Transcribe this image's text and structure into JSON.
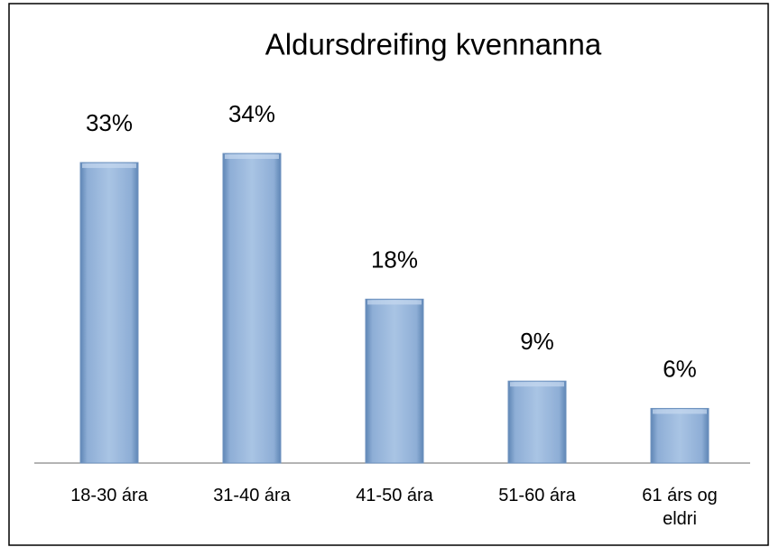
{
  "chart_data": {
    "type": "bar",
    "title": "Aldursdreifing kvennanna",
    "categories": [
      "18-30 ára",
      "31-40 ára",
      "41-50 ára",
      "51-60 ára",
      "61 árs og eldri"
    ],
    "values": [
      33,
      34,
      18,
      9,
      6
    ],
    "value_labels": [
      "33%",
      "34%",
      "18%",
      "9%",
      "6%"
    ],
    "color": "#95b3d7"
  }
}
